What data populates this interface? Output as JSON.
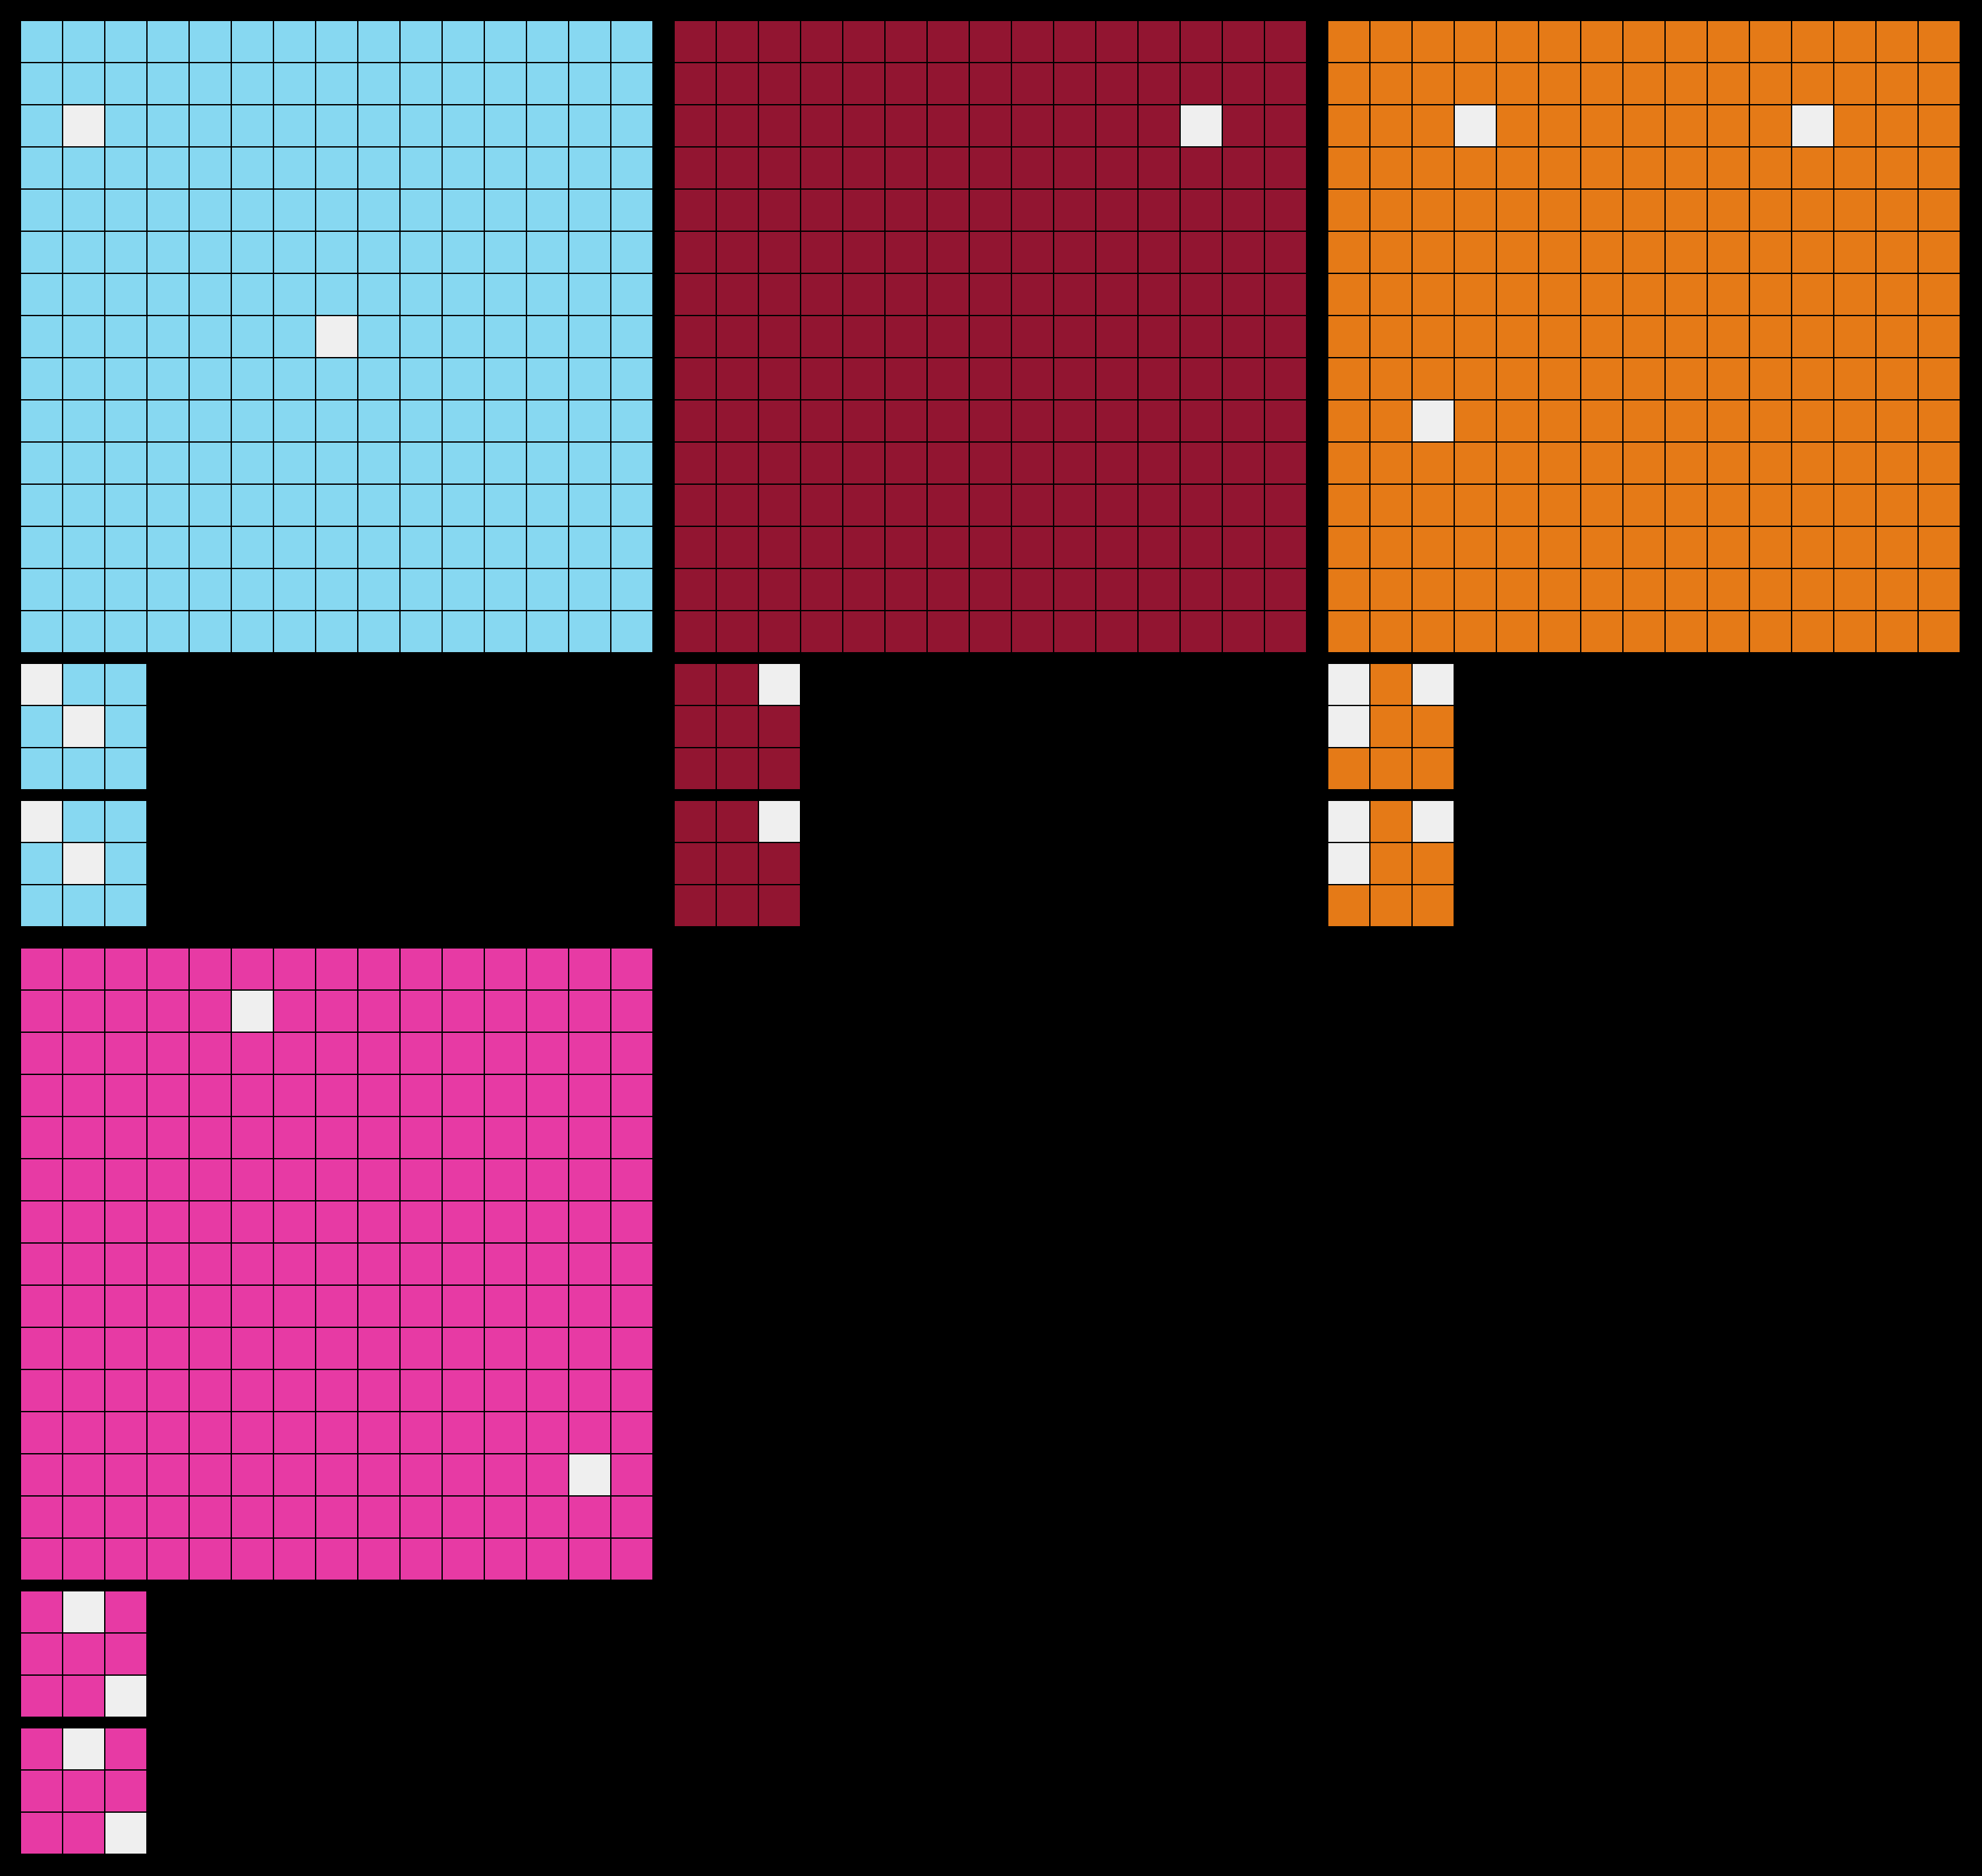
{
  "colors": {
    "background": "#000000",
    "empty": "#efefef"
  },
  "panels": [
    {
      "name": "blue",
      "color": "#87d8f1",
      "big_grid": {
        "size": 15,
        "empty_cells": [
          [
            2,
            1
          ],
          [
            7,
            7
          ]
        ]
      },
      "small_grids": [
        {
          "size": 3,
          "empty_cells": [
            [
              0,
              0
            ],
            [
              1,
              1
            ]
          ]
        },
        {
          "size": 3,
          "empty_cells": [
            [
              0,
              0
            ],
            [
              1,
              1
            ]
          ]
        }
      ]
    },
    {
      "name": "crimson",
      "color": "#921531",
      "big_grid": {
        "size": 15,
        "empty_cells": [
          [
            2,
            12
          ]
        ]
      },
      "small_grids": [
        {
          "size": 3,
          "empty_cells": [
            [
              0,
              2
            ]
          ]
        },
        {
          "size": 3,
          "empty_cells": [
            [
              0,
              2
            ]
          ]
        }
      ]
    },
    {
      "name": "orange",
      "color": "#e57a17",
      "big_grid": {
        "size": 15,
        "empty_cells": [
          [
            2,
            3
          ],
          [
            2,
            11
          ],
          [
            9,
            2
          ]
        ]
      },
      "small_grids": [
        {
          "size": 3,
          "empty_cells": [
            [
              0,
              0
            ],
            [
              0,
              2
            ],
            [
              1,
              0
            ]
          ]
        },
        {
          "size": 3,
          "empty_cells": [
            [
              0,
              0
            ],
            [
              0,
              2
            ],
            [
              1,
              0
            ]
          ]
        }
      ]
    },
    {
      "name": "magenta",
      "color": "#e73aa4",
      "big_grid": {
        "size": 15,
        "empty_cells": [
          [
            1,
            5
          ],
          [
            12,
            13
          ]
        ]
      },
      "small_grids": [
        {
          "size": 3,
          "empty_cells": [
            [
              0,
              1
            ],
            [
              2,
              2
            ]
          ]
        },
        {
          "size": 3,
          "empty_cells": [
            [
              0,
              1
            ],
            [
              2,
              2
            ]
          ]
        }
      ]
    }
  ]
}
